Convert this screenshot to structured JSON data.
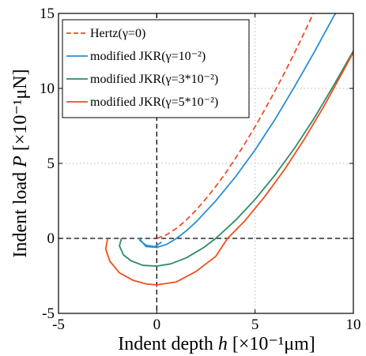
{
  "chart_data": {
    "type": "line",
    "xlabel": {
      "prefix": "Indent depth ",
      "var": "h",
      "suffix": " [×10⁻¹μm]"
    },
    "ylabel": {
      "prefix": "Indent load ",
      "var": "P",
      "suffix": " [×10⁻¹μN]"
    },
    "xlim": [
      -5,
      10
    ],
    "ylim": [
      -5,
      15
    ],
    "xticks": [
      -5,
      0,
      5,
      10
    ],
    "yticks": [
      -5,
      0,
      5,
      10,
      15
    ],
    "xtick_labels": [
      "-5",
      "0",
      "5",
      "10"
    ],
    "ytick_labels": [
      "-5",
      "0",
      "5",
      "10",
      "15"
    ],
    "grid": "dotted",
    "legend_position": "top-left",
    "series": [
      {
        "name": "Hertz(γ=0)",
        "color": "#e8502a",
        "dash": "dashed",
        "points": [
          [
            0,
            0
          ],
          [
            0.5,
            0.24
          ],
          [
            1,
            0.67
          ],
          [
            1.5,
            1.22
          ],
          [
            2,
            1.89
          ],
          [
            2.5,
            2.64
          ],
          [
            3,
            3.46
          ],
          [
            3.5,
            4.36
          ],
          [
            4,
            5.33
          ],
          [
            4.5,
            6.36
          ],
          [
            5,
            7.45
          ],
          [
            5.5,
            8.6
          ],
          [
            6,
            9.8
          ],
          [
            6.5,
            11.05
          ],
          [
            7,
            12.35
          ],
          [
            7.5,
            13.7
          ],
          [
            8,
            15.1
          ]
        ]
      },
      {
        "name": "modified JKR(γ=10⁻²)",
        "color": "#2a8ed0",
        "dash": "solid",
        "points": [
          [
            0.25,
            -0.25
          ],
          [
            -0.1,
            -0.55
          ],
          [
            -0.55,
            -0.45
          ],
          [
            -0.85,
            -0.15
          ],
          [
            -0.9,
            0
          ],
          [
            -0.55,
            -0.55
          ],
          [
            0,
            -0.6
          ],
          [
            0.5,
            -0.4
          ],
          [
            1,
            0
          ],
          [
            1.5,
            0.5
          ],
          [
            2,
            1.1
          ],
          [
            3,
            2.5
          ],
          [
            4,
            4.1
          ],
          [
            5,
            5.9
          ],
          [
            6,
            7.9
          ],
          [
            7,
            10.1
          ],
          [
            8,
            12.4
          ],
          [
            9,
            14.8
          ],
          [
            9.1,
            15
          ]
        ]
      },
      {
        "name": "modified JKR(γ=3*10⁻²)",
        "color": "#2e8b6a",
        "dash": "solid",
        "points": [
          [
            -1.8,
            0
          ],
          [
            -1.9,
            -0.5
          ],
          [
            -1.7,
            -1.1
          ],
          [
            -1.3,
            -1.5
          ],
          [
            -0.7,
            -1.8
          ],
          [
            0,
            -1.85
          ],
          [
            0.7,
            -1.7
          ],
          [
            1.5,
            -1.3
          ],
          [
            2.4,
            -0.6
          ],
          [
            3,
            0
          ],
          [
            4,
            1.2
          ],
          [
            5,
            2.6
          ],
          [
            6,
            4.2
          ],
          [
            7,
            6.0
          ],
          [
            8,
            8.0
          ],
          [
            9,
            10.2
          ],
          [
            10,
            12.5
          ]
        ]
      },
      {
        "name": "modified JKR(γ=5*10⁻²)",
        "color": "#f04e1e",
        "dash": "solid",
        "points": [
          [
            -2.5,
            0
          ],
          [
            -2.6,
            -0.7
          ],
          [
            -2.4,
            -1.5
          ],
          [
            -1.9,
            -2.3
          ],
          [
            -1.2,
            -2.8
          ],
          [
            -0.5,
            -3.05
          ],
          [
            0,
            -3.1
          ],
          [
            1,
            -2.9
          ],
          [
            2,
            -2.2
          ],
          [
            3,
            -1.2
          ],
          [
            3.6,
            0
          ],
          [
            4.5,
            1.2
          ],
          [
            5.5,
            2.8
          ],
          [
            6.5,
            4.6
          ],
          [
            7.5,
            6.6
          ],
          [
            8.5,
            8.8
          ],
          [
            9.5,
            11.2
          ],
          [
            10,
            12.4
          ]
        ]
      }
    ]
  }
}
